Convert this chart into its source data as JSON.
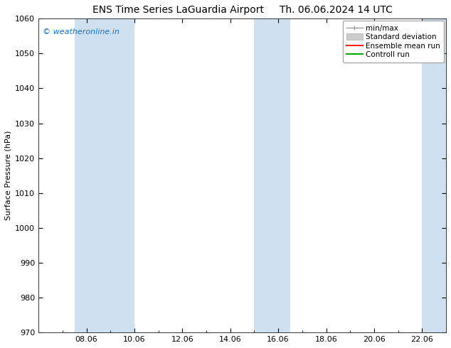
{
  "title_left": "ENS Time Series LaGuardia Airport",
  "title_right": "Th. 06.06.2024 14 UTC",
  "ylabel": "Surface Pressure (hPa)",
  "ylim": [
    970,
    1060
  ],
  "yticks": [
    970,
    980,
    990,
    1000,
    1010,
    1020,
    1030,
    1040,
    1050,
    1060
  ],
  "xlim_start": 6.0,
  "xlim_end": 23.0,
  "xtick_labels": [
    "08.06",
    "10.06",
    "12.06",
    "14.06",
    "16.06",
    "18.06",
    "20.06",
    "22.06"
  ],
  "xtick_positions": [
    8,
    10,
    12,
    14,
    16,
    18,
    20,
    22
  ],
  "shaded_bands": [
    {
      "x_start": 7.5,
      "x_end": 10.0
    },
    {
      "x_start": 15.0,
      "x_end": 16.5
    },
    {
      "x_start": 22.0,
      "x_end": 23.0
    }
  ],
  "shade_color": "#cfe0f0",
  "watermark_text": "© weatheronline.in",
  "watermark_color": "#1a6eb5",
  "background_color": "#ffffff",
  "legend_entries": [
    {
      "label": "min/max"
    },
    {
      "label": "Standard deviation"
    },
    {
      "label": "Ensemble mean run"
    },
    {
      "label": "Controll run"
    }
  ],
  "title_fontsize": 10,
  "axis_label_fontsize": 8,
  "tick_fontsize": 8,
  "legend_fontsize": 7.5
}
